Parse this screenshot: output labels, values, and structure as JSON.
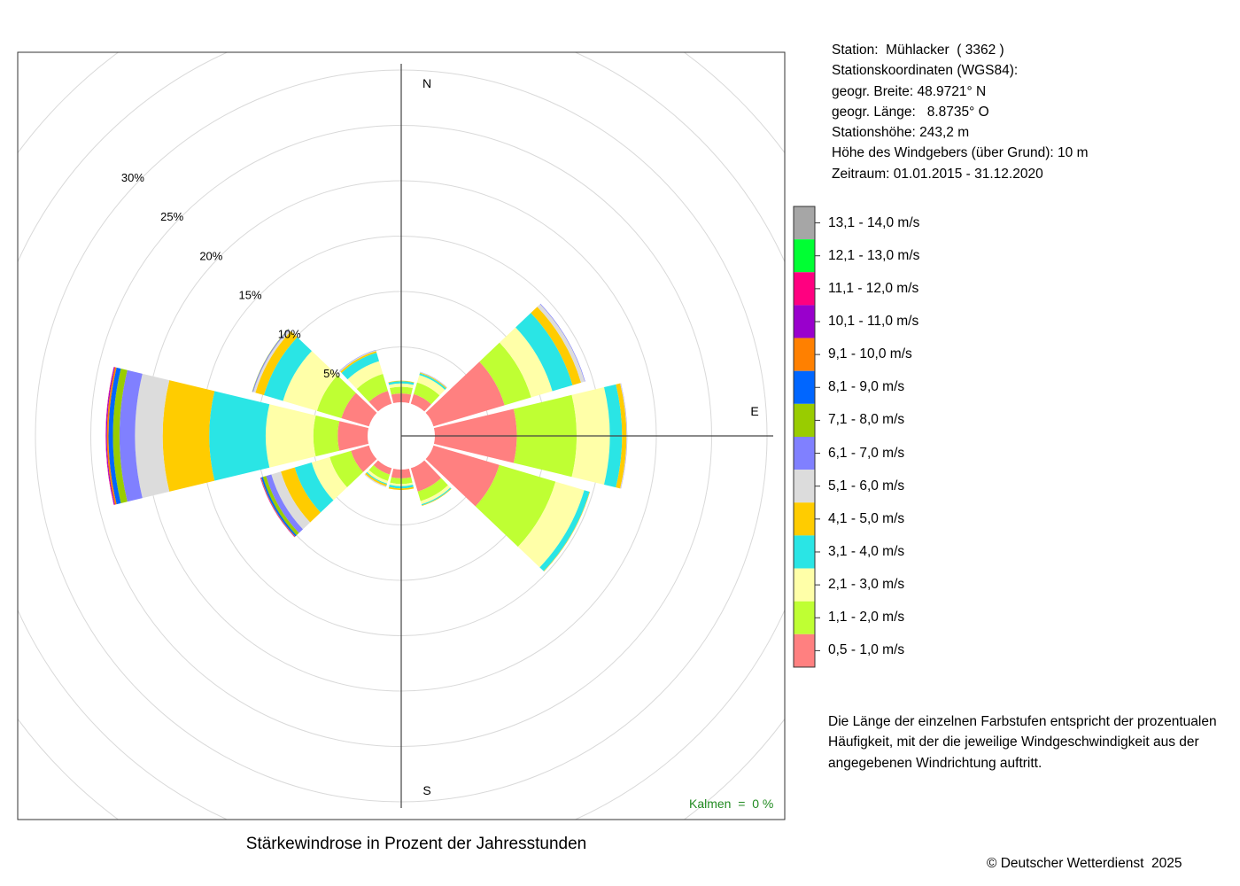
{
  "station": {
    "line1": "Station:  Mühlacker  ( 3362 )",
    "line2": "Stationskoordinaten (WGS84):",
    "line3": "geogr. Breite: 48.9721° N",
    "line4": "geogr. Länge:   8.8735° O",
    "line5": "Stationshöhe: 243,2 m",
    "line6": "Höhe des Windgebers (über Grund): 10 m",
    "line7": "Zeitraum: 01.01.2015 - 31.12.2020"
  },
  "note": {
    "line1": "Die Länge der einzelnen Farbstufen entspricht der prozentualen",
    "line2": "Häufigkeit, mit der die jeweilige Windgeschwindigkeit aus der",
    "line3": "angegebenen Windrichtung auftritt."
  },
  "caption": "Stärkewindrose in Prozent der Jahresstunden",
  "copyright": "© Deutscher Wetterdienst  2025",
  "kalmen": "Kalmen  =  0 %",
  "chart_data": {
    "type": "windrose",
    "title": "Stärkewindrose in Prozent der Jahresstunden",
    "direction_labels": [
      "N",
      "E",
      "S"
    ],
    "ring_labels": [
      "5%",
      "10%",
      "15%",
      "20%",
      "25%",
      "30%"
    ],
    "ring_values": [
      5,
      10,
      15,
      20,
      25,
      30
    ],
    "calm_percent": 0,
    "speed_classes": [
      {
        "label": "0,5 - 1,0 m/s",
        "color": "#FF8080"
      },
      {
        "label": "1,1 - 2,0 m/s",
        "color": "#BFFF33"
      },
      {
        "label": "2,1 - 3,0 m/s",
        "color": "#FFFFA8"
      },
      {
        "label": "3,1 - 4,0 m/s",
        "color": "#2AE5E5"
      },
      {
        "label": "4,1 - 5,0 m/s",
        "color": "#FFCC00"
      },
      {
        "label": "5,1 - 6,0 m/s",
        "color": "#DCDCDC"
      },
      {
        "label": "6,1 - 7,0 m/s",
        "color": "#8080FF"
      },
      {
        "label": "7,1 - 8,0 m/s",
        "color": "#99CC00"
      },
      {
        "label": "8,1 - 9,0 m/s",
        "color": "#0066FF"
      },
      {
        "label": "9,1 - 10,0 m/s",
        "color": "#FF8000"
      },
      {
        "label": "10,1 - 11,0 m/s",
        "color": "#9900CC"
      },
      {
        "label": "11,1 - 12,0 m/s",
        "color": "#FF0080"
      },
      {
        "label": "12,1 - 13,0 m/s",
        "color": "#00FF33"
      },
      {
        "label": "13,1 - 14,0 m/s",
        "color": "#A6A6A6"
      }
    ],
    "sectors": [
      {
        "dir": 0,
        "values": [
          0.8,
          0.6,
          0.3,
          0.2,
          0.05
        ]
      },
      {
        "dir": 30,
        "values": [
          0.9,
          1.1,
          0.7,
          0.15,
          0.08,
          0.04,
          0.02
        ]
      },
      {
        "dir": 60,
        "values": [
          6.7,
          2.5,
          2.0,
          1.9,
          0.8,
          0.35,
          0.05
        ]
      },
      {
        "dir": 90,
        "values": [
          7.4,
          5.4,
          3.0,
          1.1,
          0.4,
          0.05,
          0.02
        ]
      },
      {
        "dir": 120,
        "values": [
          6.2,
          5.3,
          2.7,
          0.5,
          0.04
        ]
      },
      {
        "dir": 150,
        "values": [
          2.2,
          0.9,
          0.3,
          0.1,
          0.05
        ]
      },
      {
        "dir": 180,
        "values": [
          0.8,
          0.5,
          0.2,
          0.2,
          0.15
        ]
      },
      {
        "dir": 210,
        "values": [
          0.6,
          0.6,
          0.25,
          0.1,
          0.15,
          0.1
        ]
      },
      {
        "dir": 240,
        "values": [
          1.7,
          2.0,
          1.7,
          1.6,
          1.3,
          0.9,
          0.5,
          0.3,
          0.15,
          0.05,
          0.03,
          0.02
        ]
      },
      {
        "dir": 270,
        "values": [
          2.7,
          2.2,
          4.3,
          5.1,
          4.2,
          2.5,
          1.4,
          0.6,
          0.4,
          0.15,
          0.08,
          0.03
        ]
      },
      {
        "dir": 300,
        "values": [
          2.6,
          2.3,
          3.2,
          1.8,
          0.8,
          0.2,
          0.08,
          0.03
        ]
      },
      {
        "dir": 330,
        "values": [
          1.2,
          1.6,
          1.2,
          0.8,
          0.15,
          0.08,
          0.03
        ]
      }
    ]
  }
}
